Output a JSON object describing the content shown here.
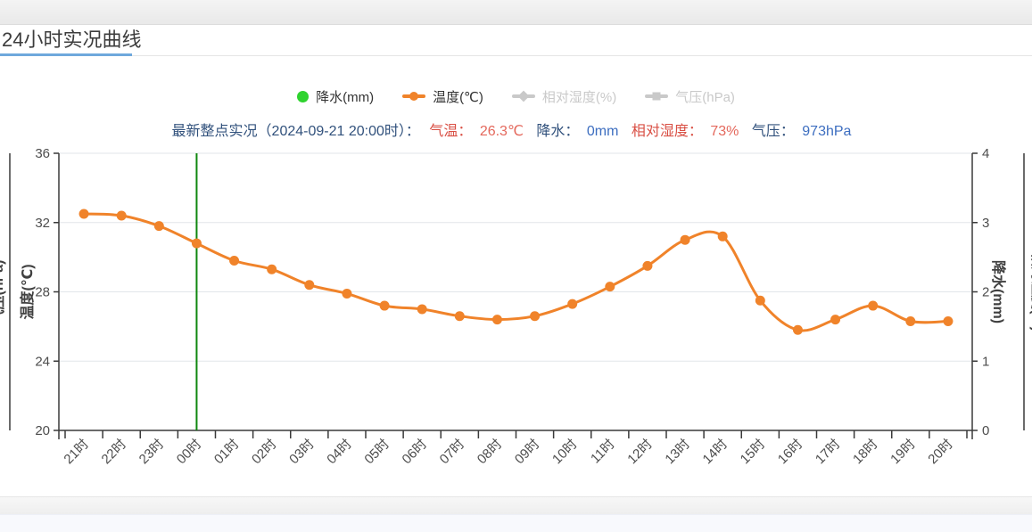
{
  "header": {
    "title": "24小时实况曲线",
    "underline_color": "#6fa8dc"
  },
  "legend": {
    "items": [
      {
        "label": "降水(mm)",
        "marker": "circle",
        "color": "#2fd32f",
        "active": true
      },
      {
        "label": "温度(℃)",
        "marker": "line-dot",
        "color": "#f0832a",
        "active": true
      },
      {
        "label": "相对湿度(%)",
        "marker": "line-diamond",
        "color": "#c9c9c9",
        "active": false
      },
      {
        "label": "气压(hPa)",
        "marker": "line-square",
        "color": "#c9c9c9",
        "active": false
      }
    ]
  },
  "status": {
    "prefix": "最新整点实况（2024-09-21 20:00时）：",
    "temp_label": "气温：",
    "temp_value": "26.3℃",
    "precip_label": "降水：",
    "precip_value": "0mm",
    "humidity_label": "相对湿度：",
    "humidity_value": "73%",
    "pressure_label": "气压：",
    "pressure_value": "973hPa"
  },
  "chart_data": {
    "type": "line",
    "smooth": true,
    "grid": true,
    "categories": [
      "21时",
      "22时",
      "23时",
      "00时",
      "01时",
      "02时",
      "03时",
      "04时",
      "05时",
      "06时",
      "07时",
      "08时",
      "09时",
      "10时",
      "11时",
      "12时",
      "13时",
      "14时",
      "15时",
      "16时",
      "17时",
      "18时",
      "19时",
      "20时"
    ],
    "series": [
      {
        "name": "温度(℃)",
        "axis": "left",
        "color": "#f0832a",
        "values": [
          32.5,
          32.4,
          31.8,
          30.8,
          29.8,
          29.3,
          28.4,
          27.9,
          27.2,
          27.0,
          26.6,
          26.4,
          26.6,
          27.3,
          28.3,
          29.5,
          31.0,
          31.2,
          27.5,
          25.8,
          26.4,
          27.2,
          26.3,
          26.3
        ]
      }
    ],
    "axes": {
      "left": {
        "label": "温度(℃)",
        "ticks": [
          36,
          32,
          28,
          24,
          20
        ],
        "range": [
          20,
          36
        ]
      },
      "right": {
        "label": "降水(mm)",
        "ticks": [
          4,
          3,
          2,
          1,
          0
        ],
        "range": [
          0,
          4
        ]
      },
      "far_left": {
        "label": "气压(hPa)"
      },
      "far_right": {
        "label": "相对湿度(%)"
      }
    },
    "midnight_marker": {
      "category": "00时",
      "color": "#0f870f"
    },
    "colors": {
      "axis_line": "#3a3a3a",
      "grid_line": "#e2e6ea",
      "tick_text": "#4d4d4d"
    }
  }
}
